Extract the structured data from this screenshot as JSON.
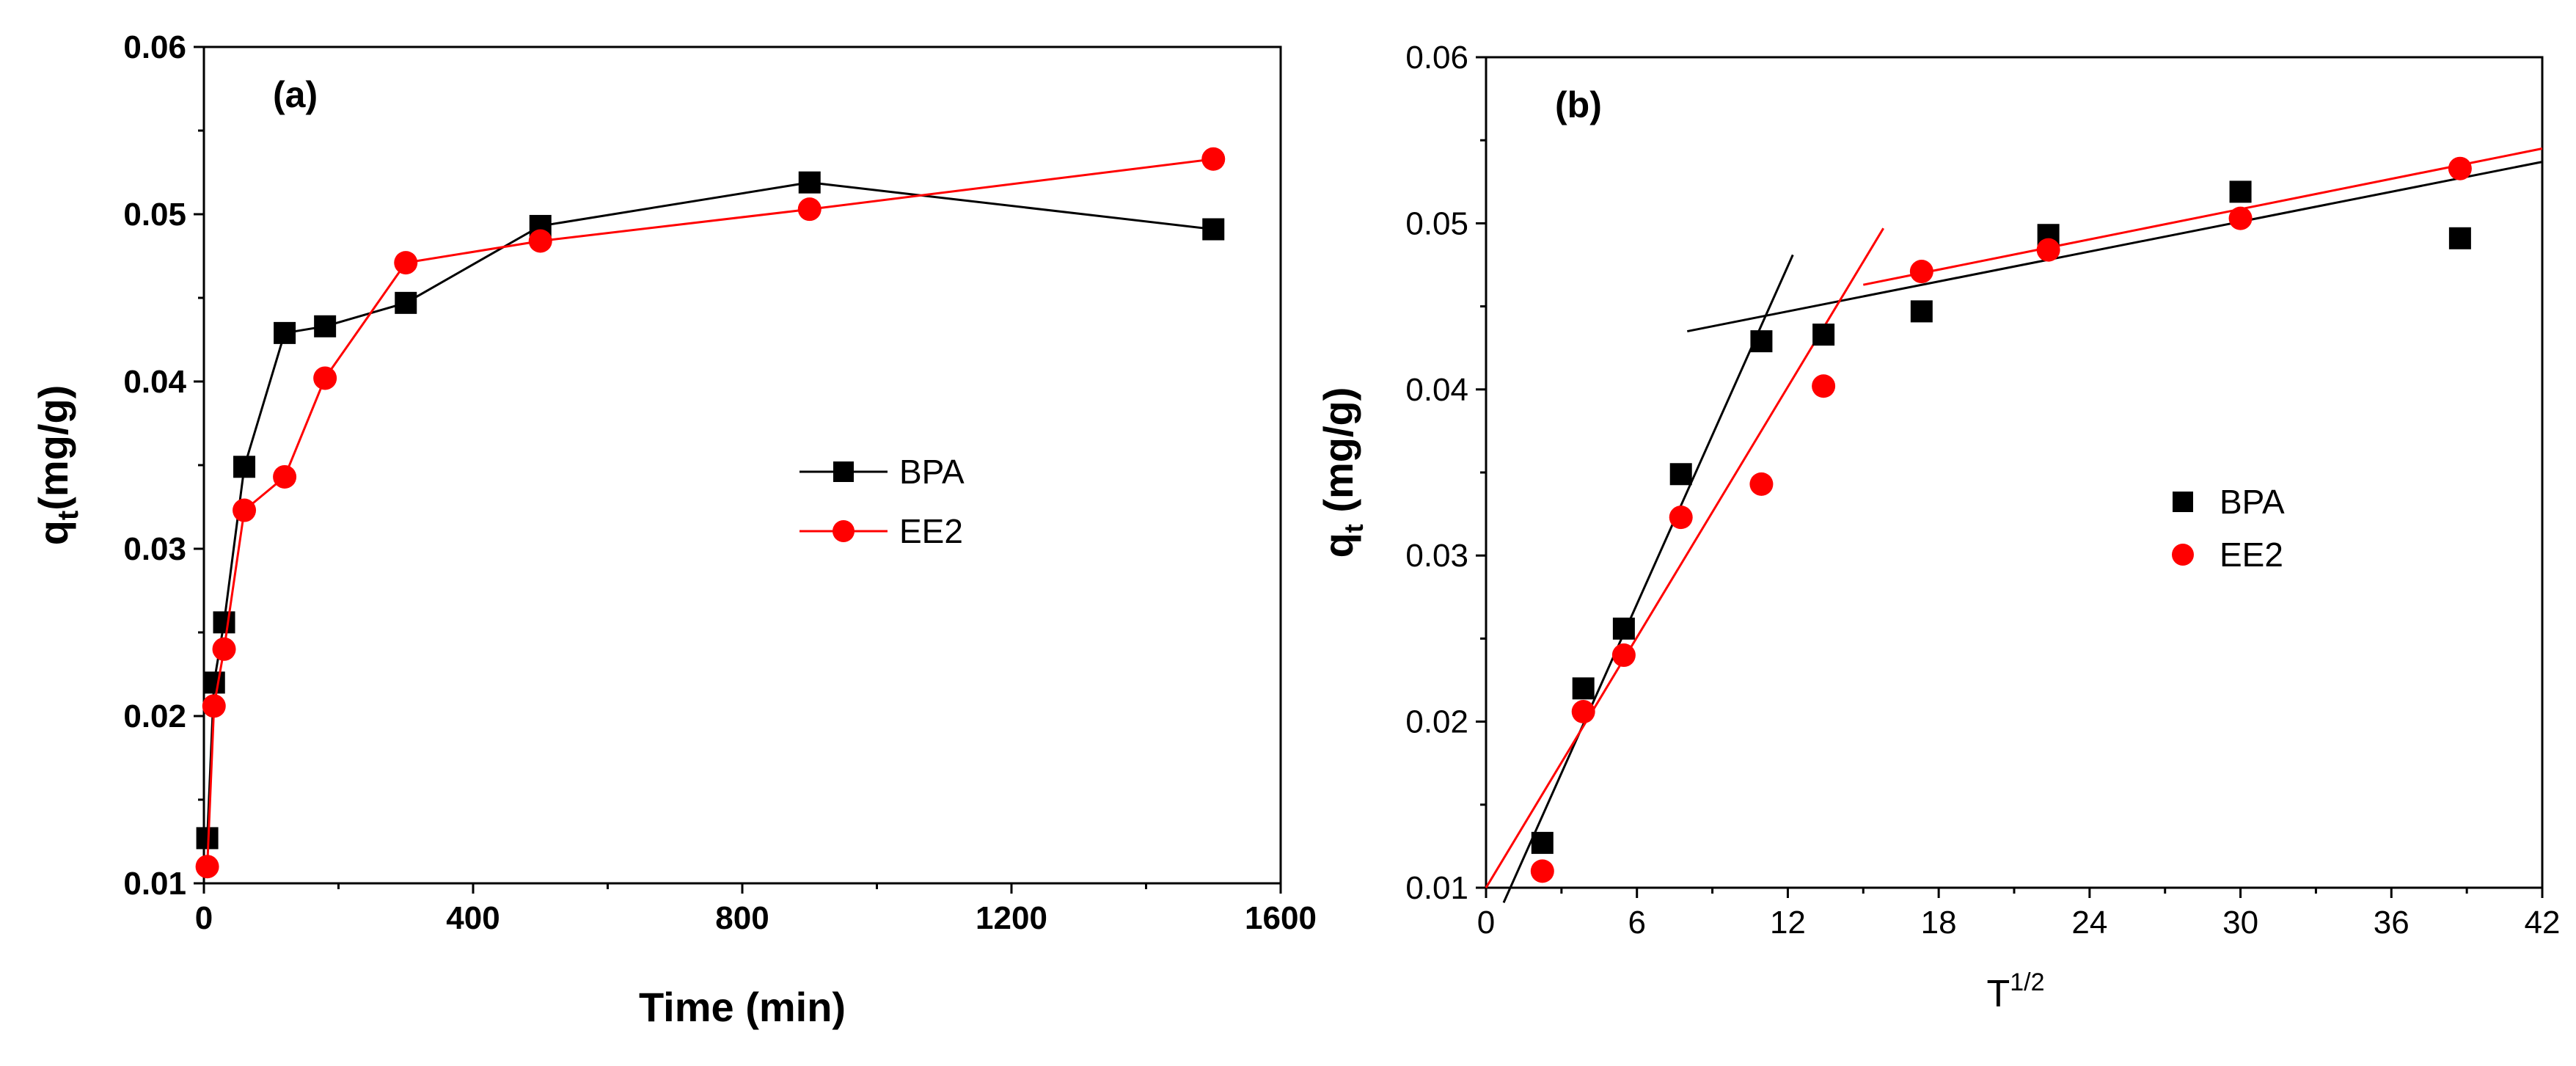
{
  "chart_data": [
    {
      "panel_label": "(a)",
      "type": "line",
      "xlabel": "Time (min)",
      "ylabel_main": "q",
      "ylabel_sub": "t",
      "ylabel_tail": "(mg/g)",
      "xlim": [
        0,
        1600
      ],
      "ylim": [
        0.01,
        0.06
      ],
      "xticks": [
        0,
        400,
        800,
        1200,
        1600
      ],
      "xtick_labels": [
        "0",
        "400",
        "800",
        "1200",
        "1600"
      ],
      "yticks": [
        0.01,
        0.02,
        0.03,
        0.04,
        0.05,
        0.06
      ],
      "ytick_labels": [
        "0.01",
        "0.02",
        "0.03",
        "0.04",
        "0.05",
        "0.06"
      ],
      "legend_position": "center-right",
      "series": [
        {
          "name": "BPA",
          "marker": "square",
          "color": "#000000",
          "points": [
            [
              5,
              0.0127
            ],
            [
              15,
              0.022
            ],
            [
              30,
              0.0256
            ],
            [
              60,
              0.0349
            ],
            [
              120,
              0.0429
            ],
            [
              180,
              0.0433
            ],
            [
              300,
              0.0447
            ],
            [
              500,
              0.0493
            ],
            [
              900,
              0.0519
            ],
            [
              1500,
              0.0491
            ]
          ]
        },
        {
          "name": "EE2",
          "marker": "circle",
          "color": "#ff0000",
          "points": [
            [
              5,
              0.011
            ],
            [
              15,
              0.0206
            ],
            [
              30,
              0.024
            ],
            [
              60,
              0.0323
            ],
            [
              120,
              0.0343
            ],
            [
              180,
              0.0402
            ],
            [
              300,
              0.0471
            ],
            [
              500,
              0.0484
            ],
            [
              900,
              0.0503
            ],
            [
              1500,
              0.0533
            ]
          ]
        }
      ]
    },
    {
      "panel_label": "(b)",
      "type": "scatter",
      "xlabel_main": "T",
      "xlabel_sup": "1/2",
      "ylabel_main": "q",
      "ylabel_sub": "t",
      "ylabel_tail": " (mg/g)",
      "xlim": [
        0,
        42
      ],
      "ylim": [
        0.01,
        0.06
      ],
      "xticks": [
        0,
        6,
        12,
        18,
        24,
        30,
        36,
        42
      ],
      "xtick_labels": [
        "0",
        "6",
        "12",
        "18",
        "24",
        "30",
        "36",
        "42"
      ],
      "yticks": [
        0.01,
        0.02,
        0.03,
        0.04,
        0.05,
        0.06
      ],
      "ytick_labels": [
        "0.01",
        "0.02",
        "0.03",
        "0.04",
        "0.05",
        "0.06"
      ],
      "legend_position": "center-right",
      "series": [
        {
          "name": "BPA",
          "marker": "square",
          "color": "#000000",
          "points": [
            [
              2.24,
              0.0127
            ],
            [
              3.87,
              0.022
            ],
            [
              5.48,
              0.0256
            ],
            [
              7.75,
              0.0349
            ],
            [
              10.95,
              0.0429
            ],
            [
              13.42,
              0.0433
            ],
            [
              17.32,
              0.0447
            ],
            [
              22.36,
              0.0493
            ],
            [
              30.0,
              0.0519
            ],
            [
              38.73,
              0.0491
            ]
          ]
        },
        {
          "name": "EE2",
          "marker": "circle",
          "color": "#ff0000",
          "points": [
            [
              2.24,
              0.011
            ],
            [
              3.87,
              0.0206
            ],
            [
              5.48,
              0.024
            ],
            [
              7.75,
              0.0323
            ],
            [
              10.95,
              0.0343
            ],
            [
              13.42,
              0.0402
            ],
            [
              17.32,
              0.0471
            ],
            [
              22.36,
              0.0484
            ],
            [
              30.0,
              0.0503
            ],
            [
              38.73,
              0.0533
            ]
          ]
        }
      ],
      "fit_lines": [
        {
          "series": "BPA",
          "color": "#000000",
          "from": [
            0.7,
            0.0091
          ],
          "to": [
            12.2,
            0.0481
          ]
        },
        {
          "series": "BPA",
          "color": "#000000",
          "from": [
            8.0,
            0.0435
          ],
          "to": [
            42.0,
            0.0537
          ]
        },
        {
          "series": "EE2",
          "color": "#ff0000",
          "from": [
            0.0,
            0.01
          ],
          "to": [
            15.8,
            0.0497
          ]
        },
        {
          "series": "EE2",
          "color": "#ff0000",
          "from": [
            15.0,
            0.0463
          ],
          "to": [
            42.0,
            0.0545
          ]
        }
      ]
    }
  ]
}
